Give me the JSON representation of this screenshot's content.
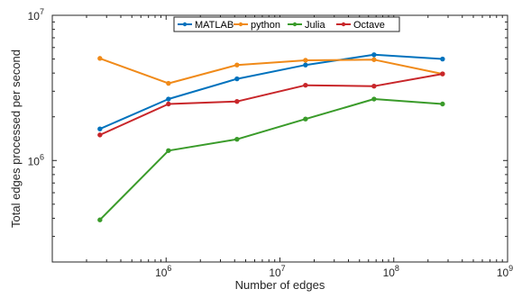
{
  "chart_data": {
    "type": "line",
    "title": "",
    "xlabel": "Number of edges",
    "ylabel": "Total edges processed per second",
    "xscale": "log",
    "yscale": "log",
    "xlim": [
      100000,
      1000000000
    ],
    "ylim": [
      200000,
      10000000
    ],
    "x_ticks": [
      {
        "base": "10",
        "exp": "6",
        "value": 1000000
      },
      {
        "base": "10",
        "exp": "7",
        "value": 10000000
      },
      {
        "base": "10",
        "exp": "8",
        "value": 100000000
      },
      {
        "base": "10",
        "exp": "9",
        "value": 1000000000
      }
    ],
    "y_ticks": [
      {
        "base": "10",
        "exp": "6",
        "value": 1000000
      },
      {
        "base": "10",
        "exp": "7",
        "value": 10000000
      }
    ],
    "grid": false,
    "legend_position": "top-center",
    "x": [
      262144,
      1048576,
      4194304,
      16777216,
      67108864,
      268435456
    ],
    "series": [
      {
        "name": "MATLAB",
        "color": "#0072bd",
        "values": [
          1650000,
          2650000,
          3650000,
          4550000,
          5350000,
          5000000
        ]
      },
      {
        "name": "python",
        "color": "#f08a19",
        "values": [
          5050000,
          3400000,
          4550000,
          4900000,
          4950000,
          3950000
        ]
      },
      {
        "name": "Julia",
        "color": "#3a9b2a",
        "values": [
          390000,
          1170000,
          1400000,
          1930000,
          2650000,
          2450000
        ]
      },
      {
        "name": "Octave",
        "color": "#c8262a",
        "values": [
          1500000,
          2450000,
          2550000,
          3300000,
          3250000,
          3950000
        ]
      }
    ]
  }
}
